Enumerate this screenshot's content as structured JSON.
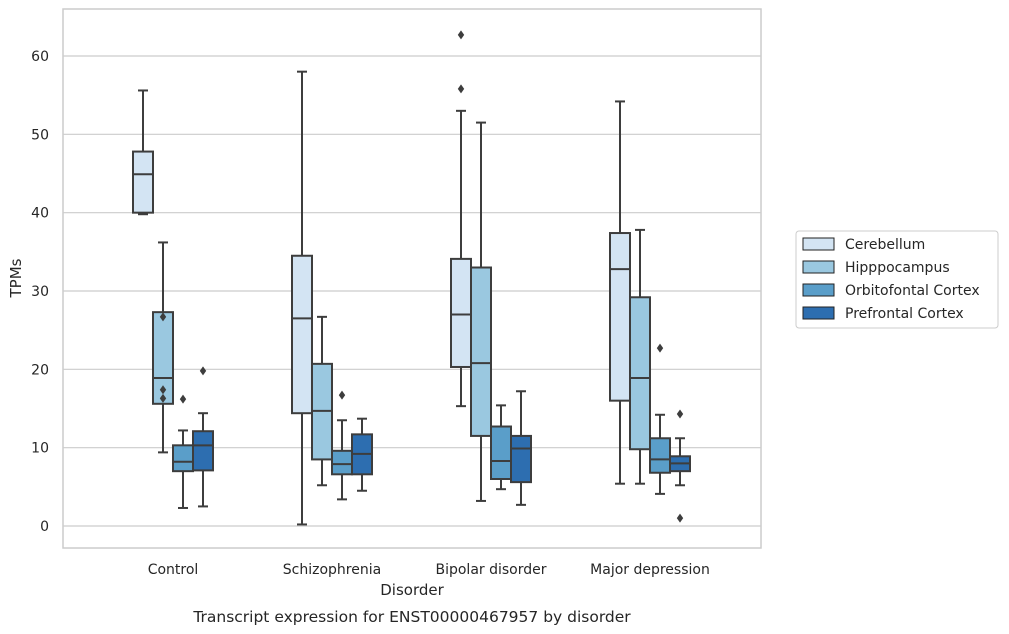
{
  "chart_data": {
    "type": "box",
    "title": "",
    "caption": "Transcript expression for ENST00000467957 by disorder",
    "xlabel": "Disorder",
    "ylabel": "TPMs",
    "ylim": [
      -3,
      66
    ],
    "yticks": [
      0,
      10,
      20,
      30,
      40,
      50,
      60
    ],
    "grid": "horizontal",
    "legend_placement": "right",
    "categories": [
      "Control",
      "Schizophrenia",
      "Bipolar disorder",
      "Major depression"
    ],
    "series": [
      {
        "name": "Cerebellum",
        "color": "#d3e4f3",
        "boxes": [
          {
            "whisker_low": 39.8,
            "q1": 40.0,
            "median": 44.9,
            "q3": 47.8,
            "whisker_high": 55.6,
            "outliers": []
          },
          {
            "whisker_low": 0.2,
            "q1": 14.4,
            "median": 26.5,
            "q3": 34.5,
            "whisker_high": 58.0,
            "outliers": []
          },
          {
            "whisker_low": 15.3,
            "q1": 20.3,
            "median": 27.0,
            "q3": 34.1,
            "whisker_high": 53.0,
            "outliers": [
              55.8,
              62.7
            ]
          },
          {
            "whisker_low": 5.4,
            "q1": 16.0,
            "median": 32.8,
            "q3": 37.4,
            "whisker_high": 54.2,
            "outliers": []
          }
        ]
      },
      {
        "name": "Hipppocampus",
        "color": "#9ac8e0",
        "boxes": [
          {
            "whisker_low": 9.4,
            "q1": 15.6,
            "median": 18.9,
            "q3": 27.3,
            "whisker_high": 36.2,
            "outliers": [
              16.3,
              17.4,
              26.7
            ]
          },
          {
            "whisker_low": 5.2,
            "q1": 8.5,
            "median": 14.7,
            "q3": 20.7,
            "whisker_high": 26.7,
            "outliers": []
          },
          {
            "whisker_low": 3.2,
            "q1": 11.5,
            "median": 20.8,
            "q3": 33.0,
            "whisker_high": 51.5,
            "outliers": []
          },
          {
            "whisker_low": 5.4,
            "q1": 9.8,
            "median": 18.9,
            "q3": 29.2,
            "whisker_high": 37.8,
            "outliers": []
          }
        ]
      },
      {
        "name": "Orbitofontal Cortex",
        "color": "#5a9ec9",
        "boxes": [
          {
            "whisker_low": 2.3,
            "q1": 7.0,
            "median": 8.2,
            "q3": 10.3,
            "whisker_high": 12.2,
            "outliers": [
              16.2
            ]
          },
          {
            "whisker_low": 3.4,
            "q1": 6.6,
            "median": 7.9,
            "q3": 9.6,
            "whisker_high": 13.5,
            "outliers": [
              16.7
            ]
          },
          {
            "whisker_low": 4.7,
            "q1": 6.0,
            "median": 8.3,
            "q3": 12.7,
            "whisker_high": 15.4,
            "outliers": []
          },
          {
            "whisker_low": 4.1,
            "q1": 6.8,
            "median": 8.5,
            "q3": 11.2,
            "whisker_high": 14.2,
            "outliers": [
              22.7
            ]
          }
        ]
      },
      {
        "name": "Prefrontal Cortex",
        "color": "#2d6eb0",
        "boxes": [
          {
            "whisker_low": 2.5,
            "q1": 7.1,
            "median": 10.3,
            "q3": 12.1,
            "whisker_high": 14.4,
            "outliers": [
              19.8
            ]
          },
          {
            "whisker_low": 4.5,
            "q1": 6.6,
            "median": 9.2,
            "q3": 11.7,
            "whisker_high": 13.7,
            "outliers": []
          },
          {
            "whisker_low": 2.7,
            "q1": 5.6,
            "median": 9.9,
            "q3": 11.5,
            "whisker_high": 17.2,
            "outliers": []
          },
          {
            "whisker_low": 5.2,
            "q1": 7.0,
            "median": 8.0,
            "q3": 8.9,
            "whisker_high": 11.2,
            "outliers": [
              1.0,
              14.3
            ]
          }
        ]
      }
    ]
  }
}
